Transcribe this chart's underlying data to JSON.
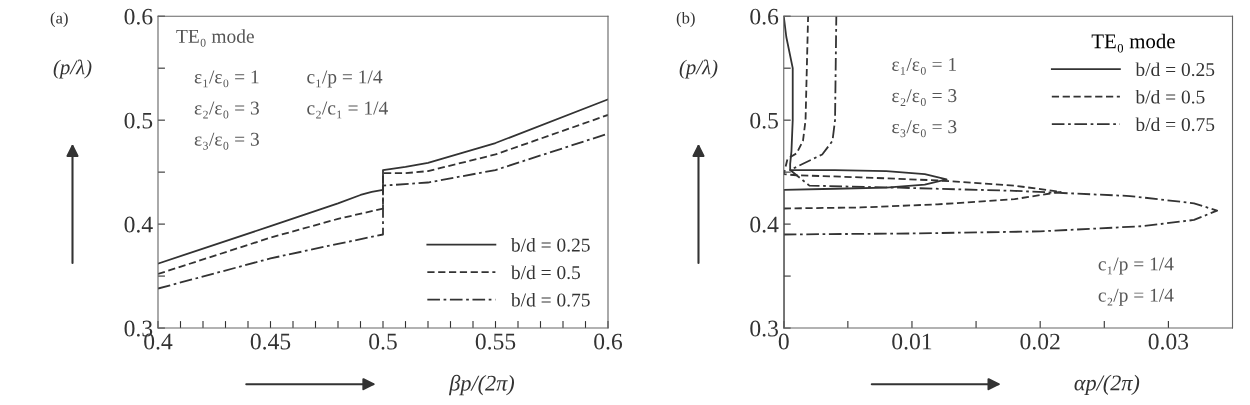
{
  "chart_data": [
    {
      "type": "line",
      "title": "(a)",
      "xlabel": "βp/(2π)",
      "ylabel": "(p/λ)",
      "legend": "bottom right",
      "grid": false,
      "marker": "none",
      "xlim": [
        0.4,
        0.6
      ],
      "ylim": [
        0.3,
        0.6
      ],
      "xticks": [
        0.4,
        {
          "value": 0.41,
          "label": null
        },
        {
          "value": 0.42,
          "label": null
        },
        {
          "value": 0.43,
          "label": null
        },
        {
          "value": 0.44,
          "label": null
        },
        0.45,
        {
          "value": 0.46,
          "label": null
        },
        {
          "value": 0.47,
          "label": null
        },
        {
          "value": 0.48,
          "label": null
        },
        {
          "value": 0.49,
          "label": null
        },
        0.5,
        {
          "value": 0.51,
          "label": null
        },
        {
          "value": 0.52,
          "label": null
        },
        {
          "value": 0.53,
          "label": null
        },
        {
          "value": 0.54,
          "label": null
        },
        0.55,
        {
          "value": 0.56,
          "label": null
        },
        {
          "value": 0.57,
          "label": null
        },
        {
          "value": 0.58,
          "label": null
        },
        {
          "value": 0.59,
          "label": null
        },
        0.6
      ],
      "yticks": [
        0.3,
        {
          "value": 0.35,
          "label": null
        },
        0.4,
        {
          "value": 0.45,
          "label": null
        },
        0.5,
        {
          "value": 0.55,
          "label": null
        },
        0.6
      ],
      "annotations": [
        "TE₀ mode",
        "ε₁/ε₀ = 1",
        "ε₂/ε₀ = 3",
        "ε₃/ε₀ = 3",
        "c₁/p = 1/4",
        "c₂/c₁ = 1/4"
      ],
      "series": [
        {
          "name": "b/d = 0.25",
          "color": "#333333",
          "line_style": "solid",
          "x": [
            0.4,
            0.45,
            0.48,
            0.49,
            0.495,
            0.5,
            0.5,
            0.51,
            0.52,
            0.55,
            0.6
          ],
          "values": [
            0.362,
            0.398,
            0.42,
            0.428,
            0.431,
            0.433,
            0.452,
            0.455,
            0.459,
            0.478,
            0.52
          ]
        },
        {
          "name": "b/d = 0.5",
          "color": "#333333",
          "line_style": "dashed",
          "x": [
            0.4,
            0.45,
            0.48,
            0.5,
            0.5,
            0.51,
            0.52,
            0.55,
            0.6
          ],
          "values": [
            0.352,
            0.387,
            0.405,
            0.415,
            0.449,
            0.449,
            0.451,
            0.467,
            0.505
          ]
        },
        {
          "name": "b/d = 0.75",
          "color": "#333333",
          "line_style": "dashdot",
          "x": [
            0.4,
            0.45,
            0.48,
            0.5,
            0.5,
            0.52,
            0.55,
            0.6
          ],
          "values": [
            0.338,
            0.367,
            0.381,
            0.39,
            0.437,
            0.44,
            0.452,
            0.487
          ]
        }
      ]
    },
    {
      "type": "line",
      "title": "(b)",
      "xlabel": "αp/(2π)",
      "ylabel": "(p/λ)",
      "legend": "top right",
      "legend_title": "TE₀ mode",
      "grid": false,
      "marker": "none",
      "xlim": [
        0,
        0.035
      ],
      "ylim": [
        0.3,
        0.6
      ],
      "xticks": [
        0,
        {
          "value": 0.005,
          "label": null
        },
        0.01,
        {
          "value": 0.015,
          "label": null
        },
        0.02,
        {
          "value": 0.025,
          "label": null
        },
        0.03
      ],
      "yticks": [
        0.3,
        {
          "value": 0.35,
          "label": null
        },
        0.4,
        {
          "value": 0.45,
          "label": null
        },
        0.5,
        {
          "value": 0.55,
          "label": null
        },
        0.6
      ],
      "annotations": [
        "ε₁/ε₀ = 1",
        "ε₂/ε₀ = 3",
        "ε₃/ε₀ = 3",
        "c₁/p = 1/4",
        "c₂/p = 1/4"
      ],
      "series": [
        {
          "name": "b/d = 0.25",
          "color": "#333333",
          "line_style": "solid",
          "x": [
            0,
            0,
            0.004,
            0.008,
            0.011,
            0.0127,
            0.011,
            0.008,
            0.004,
            0.0005,
            0.0005,
            0.0006,
            0.0007,
            0.0007,
            0.0002,
            0
          ],
          "values": [
            0.3,
            0.433,
            0.434,
            0.435,
            0.438,
            0.443,
            0.448,
            0.451,
            0.452,
            0.452,
            0.458,
            0.47,
            0.5,
            0.55,
            0.58,
            0.6
          ]
        },
        {
          "name": "b/d = 0.5",
          "color": "#333333",
          "line_style": "dashed",
          "x": [
            0,
            0.006,
            0.012,
            0.018,
            0.0216,
            0.018,
            0.012,
            0.006,
            0.001,
            0,
            0.0003,
            0.001,
            0.0015,
            0.0017,
            0.0019
          ],
          "values": [
            0.415,
            0.416,
            0.419,
            0.424,
            0.431,
            0.437,
            0.442,
            0.445,
            0.447,
            0.448,
            0.463,
            0.468,
            0.48,
            0.5,
            0.6
          ]
        },
        {
          "name": "b/d = 0.75",
          "color": "#333333",
          "line_style": "dashdot",
          "x": [
            0,
            0.01,
            0.02,
            0.028,
            0.032,
            0.0338,
            0.032,
            0.027,
            0.018,
            0.009,
            0.002,
            0.0005,
            0.0015,
            0.003,
            0.0038,
            0.004,
            0.0041
          ],
          "values": [
            0.39,
            0.391,
            0.393,
            0.398,
            0.404,
            0.413,
            0.42,
            0.427,
            0.432,
            0.435,
            0.437,
            0.452,
            0.458,
            0.467,
            0.48,
            0.5,
            0.6
          ]
        }
      ]
    }
  ]
}
